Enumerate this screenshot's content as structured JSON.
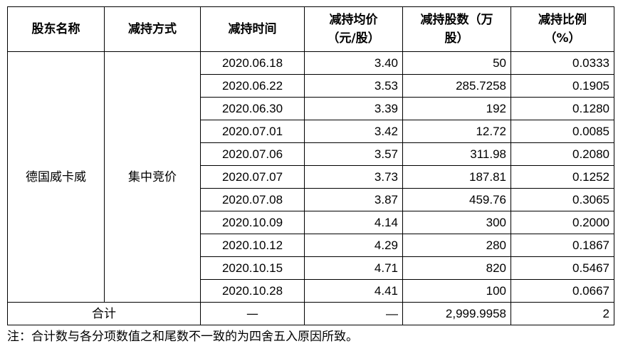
{
  "table": {
    "headers": {
      "holder": "股东名称",
      "method": "减持方式",
      "time": "减持时间",
      "price_line1": "减持均价",
      "price_line2": "（元/股）",
      "shares_line1": "减持股数（万",
      "shares_line2": "股）",
      "ratio_line1": "减持比例",
      "ratio_line2": "（%）"
    },
    "holder": "德国威卡威",
    "method": "集中竞价",
    "rows": [
      {
        "date": "2020.06.18",
        "price": "3.40",
        "shares": "50",
        "ratio": "0.0333"
      },
      {
        "date": "2020.06.22",
        "price": "3.53",
        "shares": "285.7258",
        "ratio": "0.1905"
      },
      {
        "date": "2020.06.30",
        "price": "3.39",
        "shares": "192",
        "ratio": "0.1280"
      },
      {
        "date": "2020.07.01",
        "price": "3.42",
        "shares": "12.72",
        "ratio": "0.0085"
      },
      {
        "date": "2020.07.06",
        "price": "3.57",
        "shares": "311.98",
        "ratio": "0.2080"
      },
      {
        "date": "2020.07.07",
        "price": "3.73",
        "shares": "187.81",
        "ratio": "0.1252"
      },
      {
        "date": "2020.07.08",
        "price": "3.87",
        "shares": "459.76",
        "ratio": "0.3065"
      },
      {
        "date": "2020.10.09",
        "price": "4.14",
        "shares": "300",
        "ratio": "0.2000"
      },
      {
        "date": "2020.10.12",
        "price": "4.29",
        "shares": "280",
        "ratio": "0.1867"
      },
      {
        "date": "2020.10.15",
        "price": "4.71",
        "shares": "820",
        "ratio": "0.5467"
      },
      {
        "date": "2020.10.28",
        "price": "4.41",
        "shares": "100",
        "ratio": "0.0667"
      }
    ],
    "total": {
      "label": "合计",
      "time": "—",
      "price": "—",
      "shares": "2,999.9958",
      "ratio": "2"
    }
  },
  "note": "注：合计数与各分项数值之和尾数不一致的为四舍五入原因所致。"
}
